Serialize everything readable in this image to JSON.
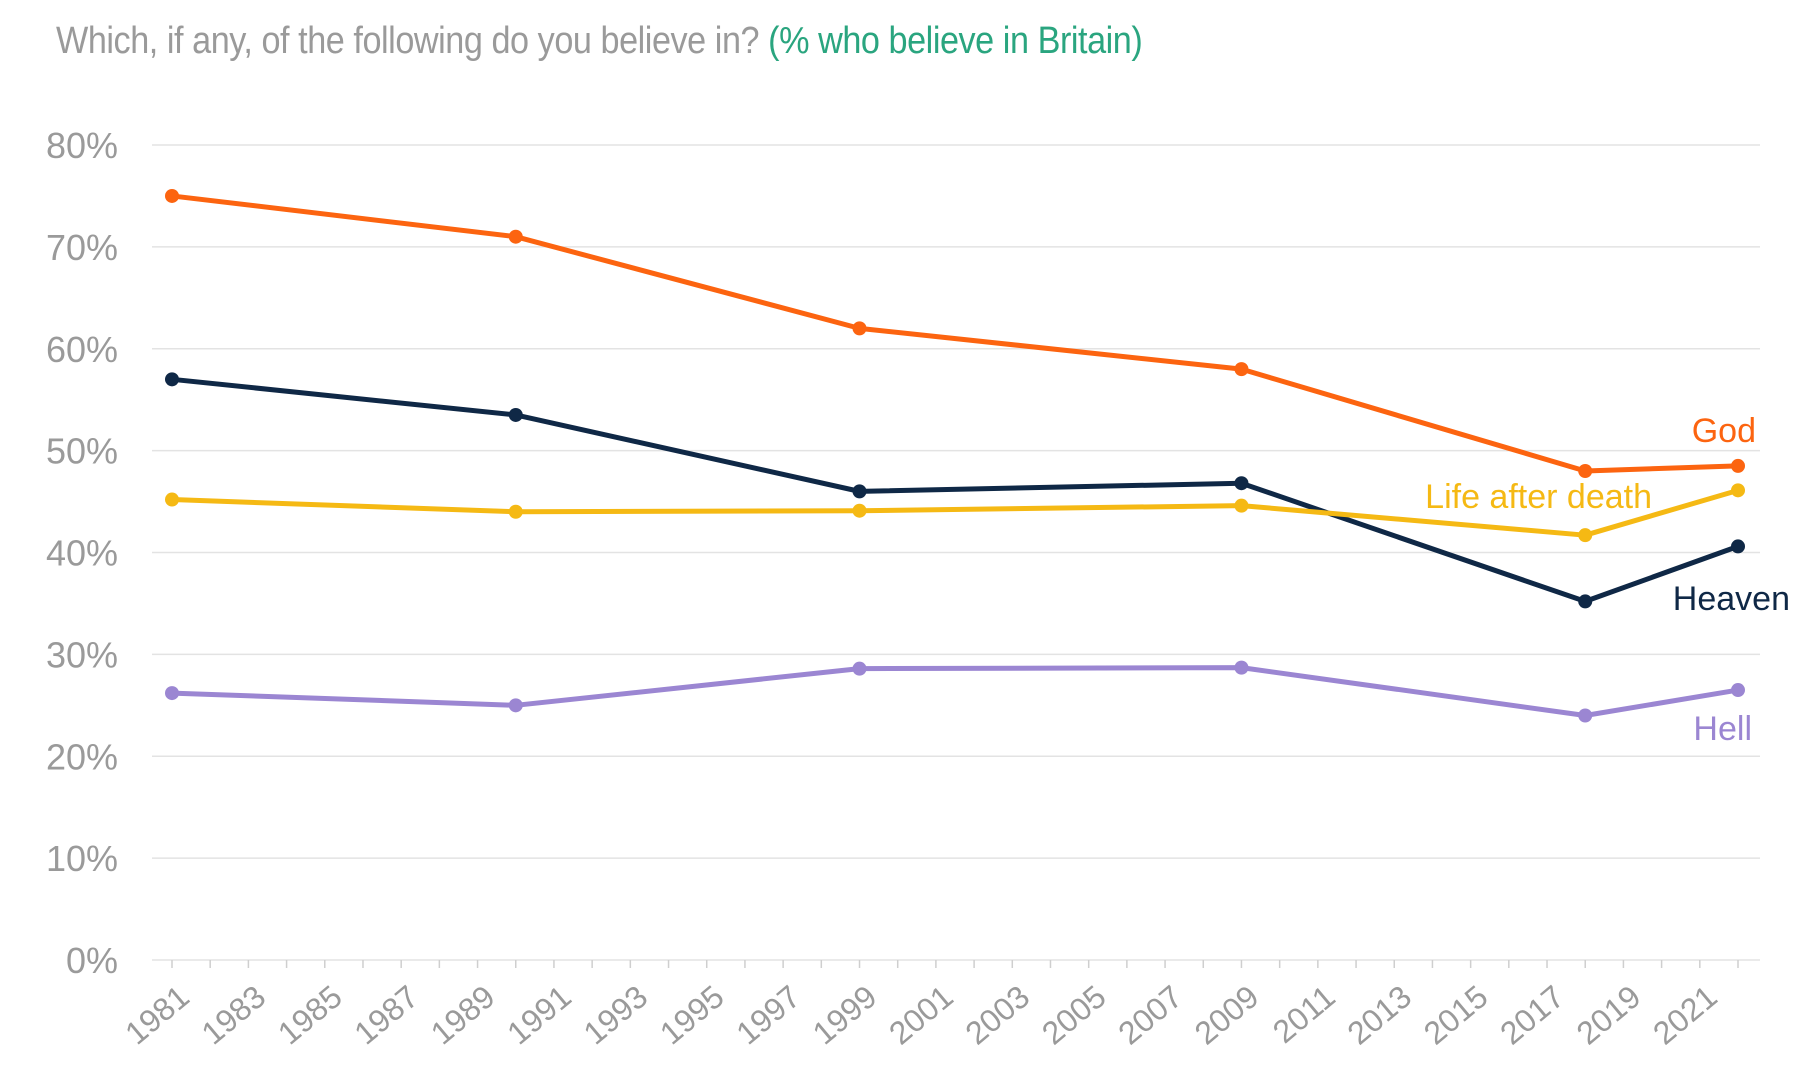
{
  "title": {
    "main": "Which, if any, of the following do you believe in?",
    "sub": "(% who believe in Britain)"
  },
  "colors": {
    "title_main": "#9a9a9a",
    "title_sub": "#2aa57f",
    "god": "#fc6410",
    "heaven": "#0f2846",
    "life_after_death": "#f5b914",
    "hell": "#9b86d2",
    "grid": "#e3e3e3",
    "tick_text": "#9a9a9a"
  },
  "chart_data": {
    "type": "line",
    "title": "Which, if any, of the following do you believe in? (% who believe in Britain)",
    "xlabel": "",
    "ylabel": "",
    "x": [
      1981,
      1990,
      1999,
      2009,
      2018,
      2022
    ],
    "xlim": [
      1981,
      2022
    ],
    "x_tick_labels": [
      "1981",
      "1983",
      "1985",
      "1987",
      "1989",
      "1991",
      "1993",
      "1995",
      "1997",
      "1999",
      "2001",
      "2003",
      "2005",
      "2007",
      "2009",
      "2011",
      "2013",
      "2015",
      "2017",
      "2019",
      "2021"
    ],
    "y_tick_labels": [
      "0%",
      "10%",
      "20%",
      "30%",
      "40%",
      "50%",
      "60%",
      "70%",
      "80%"
    ],
    "ylim": [
      0,
      80
    ],
    "grid": true,
    "legend": "inline labels at line ends",
    "series": [
      {
        "name": "God",
        "color": "#fc6410",
        "values": [
          75,
          71,
          62,
          58,
          48,
          48.5
        ]
      },
      {
        "name": "Heaven",
        "color": "#0f2846",
        "values": [
          57,
          53.5,
          46,
          46.8,
          35.2,
          40.6
        ]
      },
      {
        "name": "Life after death",
        "color": "#f5b914",
        "values": [
          45.2,
          44,
          44.1,
          44.6,
          41.7,
          46.1
        ]
      },
      {
        "name": "Hell",
        "color": "#9b86d2",
        "values": [
          26.2,
          25,
          28.6,
          28.7,
          24,
          26.5
        ]
      }
    ]
  }
}
